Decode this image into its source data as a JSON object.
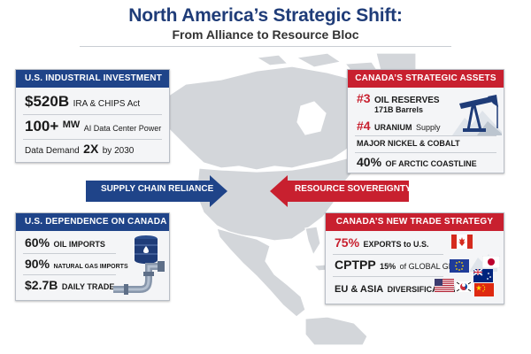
{
  "header": {
    "title": "North America’s Strategic Shift:",
    "subtitle": "From Alliance to Resource Bloc"
  },
  "colors": {
    "navy": "#1f4489",
    "red": "#c8202f",
    "map": "#d3d6da"
  },
  "us_investment": {
    "heading": "U.S. INDUSTRIAL INVESTMENT",
    "amount": "$520B",
    "amount_note": "IRA & CHIPS Act",
    "power": "100+",
    "power_unit": "MW",
    "power_note": "AI Data Center Power",
    "demand_label": "Data Demand",
    "demand_value": "2X",
    "demand_note": "by 2030"
  },
  "canada_assets": {
    "heading": "CANADA’S STRATEGIC ASSETS",
    "oil_rank": "#3",
    "oil_label": "OIL RESERVES",
    "oil_value": "171B Barrels",
    "uranium_rank": "#4",
    "uranium_label": "URANIUM",
    "uranium_note": "Supply",
    "nickel": "MAJOR NICKEL & COBALT",
    "arctic_pct": "40%",
    "arctic_label": "OF ARCTIC COASTLINE"
  },
  "arrows": {
    "left_label": "SUPPLY CHAIN RELIANCE",
    "right_label": "RESOURCE SOVEREIGNTY"
  },
  "us_dependence": {
    "heading": "U.S. DEPENDENCE ON CANADA",
    "oil_pct": "60%",
    "oil_label": "OIL IMPORTS",
    "gas_pct": "90%",
    "gas_label": "NATURAL GAS IMPORTS",
    "trade_value": "$2.7B",
    "trade_label": "DAILY TRADE"
  },
  "trade_strategy": {
    "heading": "CANADA’S NEW TRADE STRATEGY",
    "exports_pct": "75%",
    "exports_label": "EXPORTS to U.S.",
    "cptpp": "CPTPP",
    "cptpp_pct": "15%",
    "cptpp_note": "of GLOBAL GDP",
    "eu_asia": "EU & ASIA",
    "diversification": "DIVERSIFICATION"
  },
  "icons": [
    "oil-pumpjack-icon",
    "oil-barrel-icon",
    "pipeline-icon",
    "canada-flag-icon",
    "eu-flag-icon",
    "australia-flag-icon",
    "japan-flag-icon",
    "usa-flag-icon",
    "korea-flag-icon",
    "china-flag-icon"
  ]
}
